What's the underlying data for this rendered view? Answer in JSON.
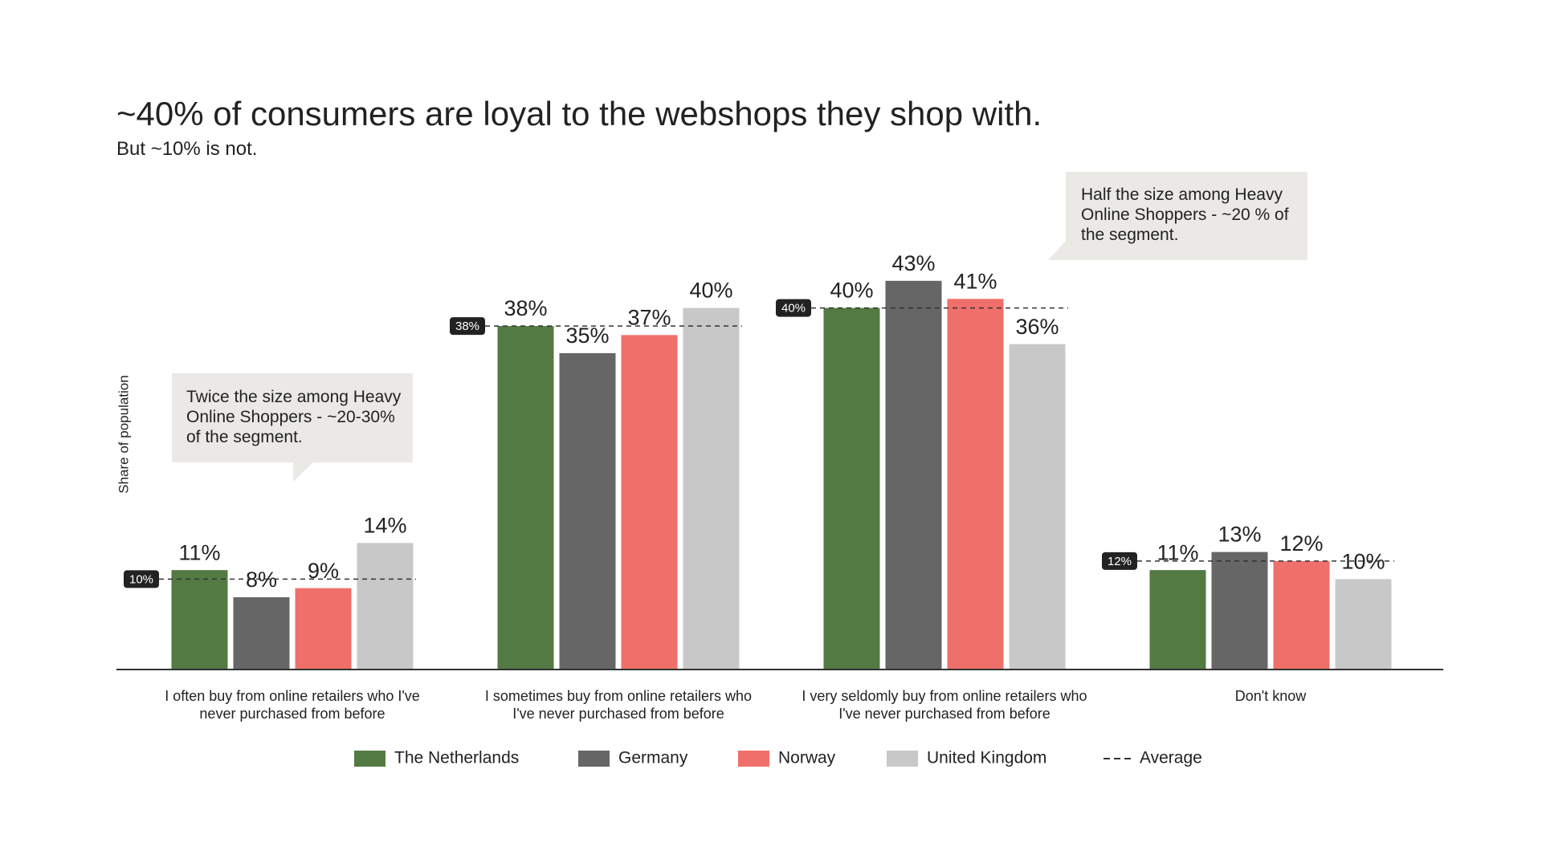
{
  "chart_data": {
    "type": "bar",
    "title": "~40% of consumers are loyal to the webshops they shop with.",
    "subtitle": "But ~10% is not.",
    "y_label": "Share of population",
    "categories": [
      "I often buy from online retailers who I've never purchased from before",
      "I sometimes buy from online retailers who I've never purchased from before",
      "I very seldomly buy from online retailers who I've never purchased from before",
      "Don't know"
    ],
    "ylim": [
      0,
      50
    ],
    "series": [
      {
        "name": "The Netherlands",
        "color": "#527a42",
        "values": [
          11,
          38,
          40,
          11
        ],
        "value_labels": [
          "11%",
          "38%",
          "40%",
          "11%"
        ]
      },
      {
        "name": "Germany",
        "color": "#666666",
        "values": [
          8,
          35,
          43,
          13
        ],
        "value_labels": [
          "8%",
          "35%",
          "43%",
          "13%"
        ]
      },
      {
        "name": "Norway",
        "color": "#ef6f6a",
        "values": [
          9,
          37,
          41,
          12
        ],
        "value_labels": [
          "9%",
          "37%",
          "41%",
          "12%"
        ]
      },
      {
        "name": "United Kingdom",
        "color": "#c8c8c8",
        "values": [
          14,
          40,
          36,
          10
        ],
        "value_labels": [
          "14%",
          "40%",
          "36%",
          "10%"
        ]
      }
    ],
    "average": {
      "name": "Average",
      "values": [
        10,
        38,
        40,
        12
      ],
      "value_labels": [
        "10%",
        "38%",
        "40%",
        "12%"
      ]
    },
    "annotations": [
      "Twice the size among Heavy Online Shoppers - ~20-30% of the segment.",
      "Half the size among Heavy Online Shoppers - ~20 % of the segment."
    ]
  }
}
